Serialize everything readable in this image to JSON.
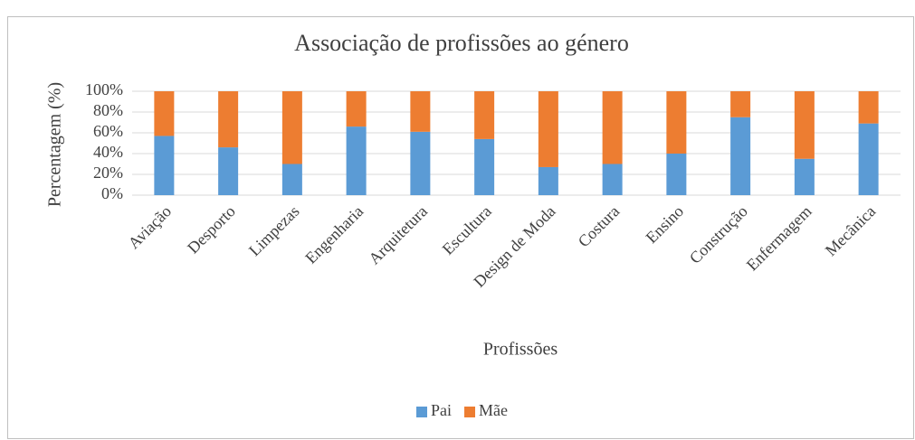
{
  "chart_data": {
    "type": "stacked_bar",
    "title": "Associação de profissões ao género",
    "x_label": "Profissões",
    "y_label": "Percentagem (%)",
    "categories": [
      "Aviação",
      "Desporto",
      "Limpezas",
      "Engenharia",
      "Arquitetura",
      "Escultura",
      "Design de Moda",
      "Costura",
      "Ensino",
      "Construção",
      "Enfermagem",
      "Mecânica"
    ],
    "series": [
      {
        "name": "Pai",
        "color": "#5b9bd5",
        "values": [
          57,
          46,
          30,
          66,
          61,
          54,
          27,
          30,
          40,
          75,
          35,
          69
        ]
      },
      {
        "name": "Mãe",
        "color": "#ed7d31",
        "values": [
          43,
          54,
          70,
          34,
          39,
          46,
          73,
          70,
          60,
          25,
          65,
          31
        ]
      }
    ],
    "ylim": [
      0,
      100
    ],
    "yticks": [
      {
        "value": 0,
        "label": "0%"
      },
      {
        "value": 20,
        "label": "20%"
      },
      {
        "value": 40,
        "label": "40%"
      },
      {
        "value": 60,
        "label": "60%"
      },
      {
        "value": 80,
        "label": "80%"
      },
      {
        "value": 100,
        "label": "100%"
      }
    ],
    "grid": true,
    "legend": "bottom"
  }
}
